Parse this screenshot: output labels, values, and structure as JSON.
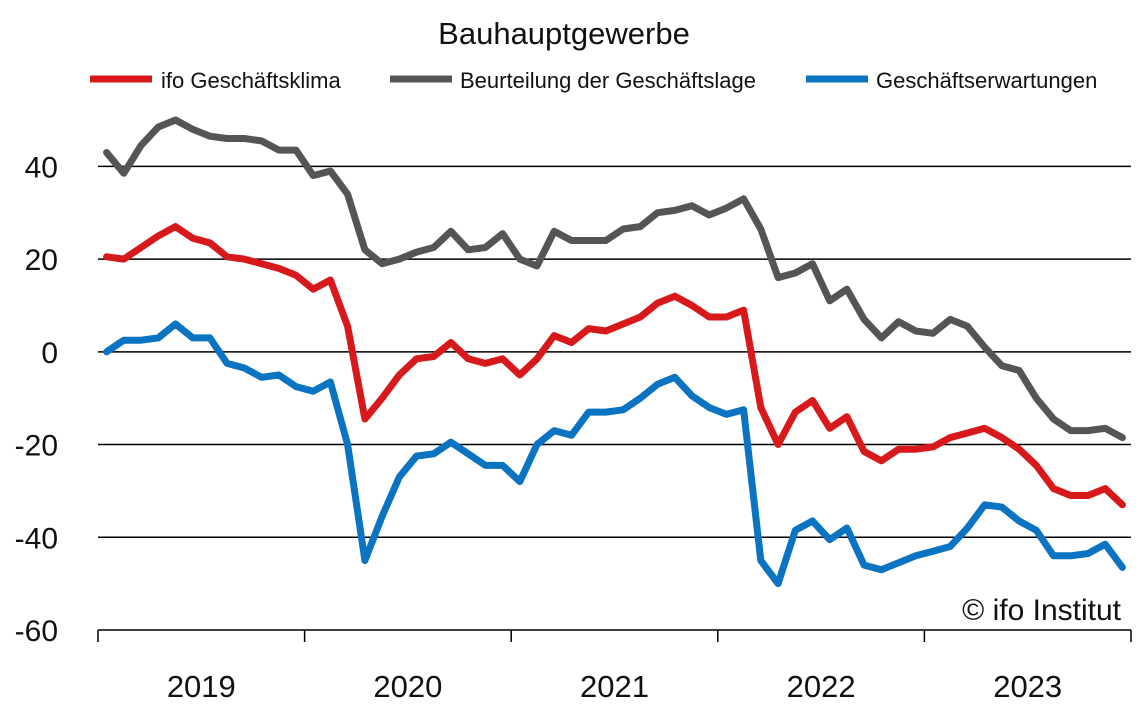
{
  "chart_data": {
    "type": "line",
    "title": "Bauhauptgewerbe",
    "xlabel": "",
    "ylabel": "",
    "ylim": [
      -60,
      50
    ],
    "yticks": [
      40,
      20,
      0,
      -20,
      -40,
      -60
    ],
    "year_labels": [
      "2019",
      "2020",
      "2021",
      "2022",
      "2023"
    ],
    "start": "2019-01",
    "end": "2023-12",
    "grid": "horizontal",
    "legend_position": "top",
    "copyright": "© ifo Institut",
    "series": [
      {
        "name": "ifo Geschäftsklima",
        "color": "#d7191c",
        "values": [
          20.5,
          20,
          22.5,
          25,
          27,
          24.5,
          23.5,
          20.5,
          20,
          19,
          18,
          16.5,
          13.5,
          15.5,
          5.5,
          -14.5,
          -10,
          -5,
          -1.5,
          -1,
          2,
          -1.5,
          -2.5,
          -1.5,
          -5,
          -1.5,
          3.5,
          2,
          5,
          4.5,
          6,
          7.5,
          10.5,
          12,
          10,
          7.5,
          7.5,
          9,
          -12,
          -20,
          -13,
          -10.5,
          -16.5,
          -14,
          -21.5,
          -23.5,
          -21,
          -21,
          -20.5,
          -18.5,
          -17.5,
          -16.5,
          -18.5,
          -21,
          -24.5,
          -29.5,
          -31,
          -31,
          -29.5,
          -33
        ]
      },
      {
        "name": "Beurteilung der Geschäftslage",
        "color": "#555555",
        "values": [
          43,
          38.5,
          44.5,
          48.5,
          50,
          48,
          46.5,
          46,
          46,
          45.5,
          43.5,
          43.5,
          38,
          39,
          34,
          22,
          19,
          20,
          21.5,
          22.5,
          26,
          22,
          22.5,
          25.5,
          20,
          18.5,
          26,
          24,
          24,
          24,
          26.5,
          27,
          30,
          30.5,
          31.5,
          29.5,
          31,
          33,
          26.5,
          16,
          17,
          19,
          11,
          13.5,
          7,
          3,
          6.5,
          4.5,
          4,
          7,
          5.5,
          1,
          -3,
          -4,
          -10,
          -14.5,
          -17,
          -17,
          -16.5,
          -18.5
        ]
      },
      {
        "name": "Geschäftserwartungen",
        "color": "#0a73c2",
        "values": [
          0,
          2.5,
          2.5,
          3,
          6,
          3,
          3,
          -2.5,
          -3.5,
          -5.5,
          -5,
          -7.5,
          -8.5,
          -6.5,
          -20,
          -45,
          -35.5,
          -27,
          -22.5,
          -22,
          -19.5,
          -22,
          -24.5,
          -24.5,
          -28,
          -20,
          -17,
          -18,
          -13,
          -13,
          -12.5,
          -10,
          -7,
          -5.5,
          -9.5,
          -12,
          -13.5,
          -12.5,
          -45,
          -50,
          -38.5,
          -36.5,
          -40.5,
          -38,
          -46,
          -47,
          -45.5,
          -44,
          -43,
          -42,
          -38,
          -33,
          -33.5,
          -36.5,
          -38.5,
          -44,
          -44,
          -43.5,
          -41.5,
          -46.5
        ]
      }
    ]
  }
}
